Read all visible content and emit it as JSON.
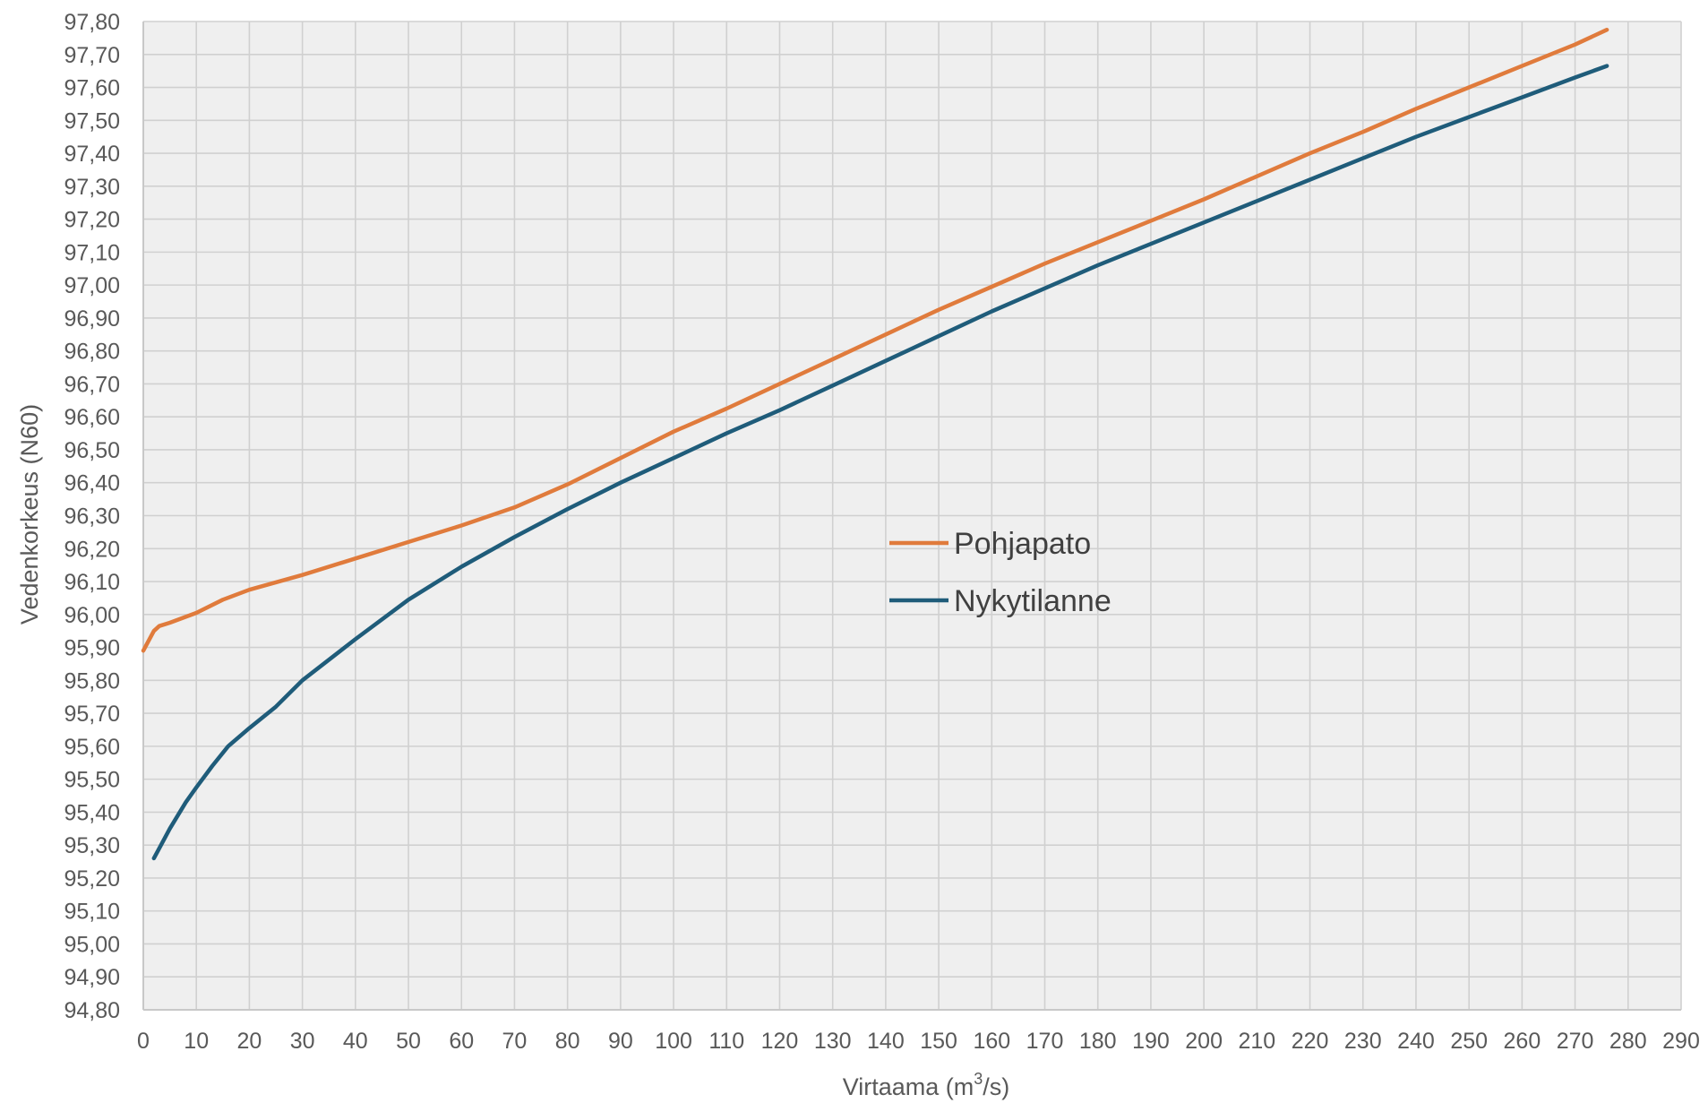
{
  "chart_data": {
    "type": "line",
    "xlabel": "Virtaama (m³/s)",
    "xlabel_parts": {
      "before": "Virtaama (m",
      "superscript": "3",
      "after": "/s)"
    },
    "ylabel": "Vedenkorkeus (N60)",
    "xlim": [
      0,
      290
    ],
    "ylim": [
      94.8,
      97.8
    ],
    "x_ticks": [
      "0",
      "10",
      "20",
      "30",
      "40",
      "50",
      "60",
      "70",
      "80",
      "90",
      "100",
      "110",
      "120",
      "130",
      "140",
      "150",
      "160",
      "170",
      "180",
      "190",
      "200",
      "210",
      "220",
      "230",
      "240",
      "250",
      "260",
      "270",
      "280",
      "290"
    ],
    "y_ticks": [
      "97,80",
      "97,70",
      "97,60",
      "97,50",
      "97,40",
      "97,30",
      "97,20",
      "97,10",
      "97,00",
      "96,90",
      "96,80",
      "96,70",
      "96,60",
      "96,50",
      "96,40",
      "96,30",
      "96,20",
      "96,10",
      "96,00",
      "95,90",
      "95,80",
      "95,70",
      "95,60",
      "95,50",
      "95,40",
      "95,30",
      "95,20",
      "95,10",
      "95,00",
      "94,90",
      "94,80"
    ],
    "grid": true,
    "legend_position": "center",
    "series": [
      {
        "name": "Pohjapato",
        "color": "#E07B3C",
        "points": [
          [
            0,
            95.89
          ],
          [
            1,
            95.92
          ],
          [
            2,
            95.95
          ],
          [
            3,
            95.965
          ],
          [
            5,
            95.975
          ],
          [
            10,
            96.005
          ],
          [
            15,
            96.045
          ],
          [
            20,
            96.075
          ],
          [
            30,
            96.12
          ],
          [
            40,
            96.17
          ],
          [
            50,
            96.22
          ],
          [
            60,
            96.27
          ],
          [
            70,
            96.325
          ],
          [
            80,
            96.395
          ],
          [
            90,
            96.475
          ],
          [
            100,
            96.555
          ],
          [
            110,
            96.625
          ],
          [
            120,
            96.7
          ],
          [
            130,
            96.775
          ],
          [
            140,
            96.85
          ],
          [
            150,
            96.925
          ],
          [
            160,
            96.995
          ],
          [
            170,
            97.065
          ],
          [
            180,
            97.13
          ],
          [
            190,
            97.195
          ],
          [
            200,
            97.26
          ],
          [
            210,
            97.33
          ],
          [
            220,
            97.4
          ],
          [
            230,
            97.465
          ],
          [
            240,
            97.535
          ],
          [
            250,
            97.6
          ],
          [
            260,
            97.665
          ],
          [
            270,
            97.73
          ],
          [
            276,
            97.775
          ]
        ]
      },
      {
        "name": "Nykytilanne",
        "color": "#1F5C7A",
        "points": [
          [
            2,
            95.26
          ],
          [
            3,
            95.29
          ],
          [
            5,
            95.35
          ],
          [
            8,
            95.43
          ],
          [
            10,
            95.475
          ],
          [
            13,
            95.54
          ],
          [
            16,
            95.6
          ],
          [
            20,
            95.655
          ],
          [
            25,
            95.72
          ],
          [
            30,
            95.8
          ],
          [
            40,
            95.925
          ],
          [
            50,
            96.045
          ],
          [
            60,
            96.145
          ],
          [
            70,
            96.235
          ],
          [
            80,
            96.32
          ],
          [
            90,
            96.4
          ],
          [
            100,
            96.475
          ],
          [
            110,
            96.55
          ],
          [
            120,
            96.62
          ],
          [
            130,
            96.695
          ],
          [
            140,
            96.77
          ],
          [
            150,
            96.845
          ],
          [
            160,
            96.92
          ],
          [
            170,
            96.99
          ],
          [
            180,
            97.06
          ],
          [
            190,
            97.125
          ],
          [
            200,
            97.19
          ],
          [
            210,
            97.255
          ],
          [
            220,
            97.32
          ],
          [
            230,
            97.385
          ],
          [
            240,
            97.45
          ],
          [
            250,
            97.51
          ],
          [
            260,
            97.57
          ],
          [
            270,
            97.63
          ],
          [
            276,
            97.665
          ]
        ]
      }
    ]
  }
}
